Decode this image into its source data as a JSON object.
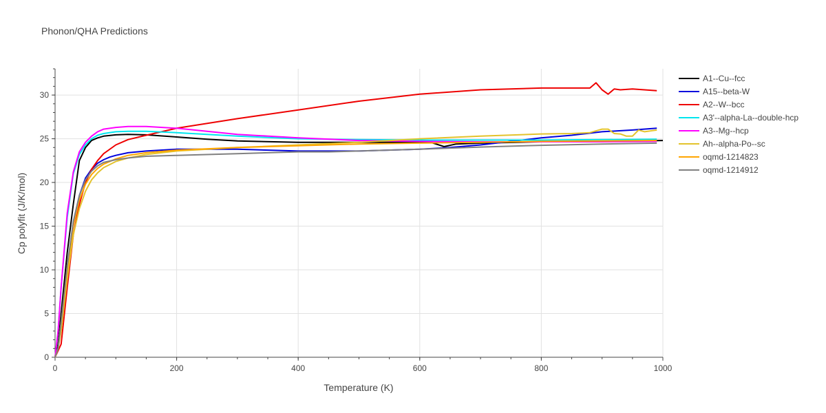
{
  "chart_data": {
    "type": "line",
    "title": "Phonon/QHA Predictions",
    "xlabel": "Temperature (K)",
    "ylabel": "Cp polyfit (J/K/mol)",
    "xlim": [
      0,
      1000
    ],
    "ylim": [
      0,
      33
    ],
    "xticks": [
      "0",
      "200",
      "400",
      "600",
      "800",
      "1000"
    ],
    "yticks": [
      "0",
      "5",
      "10",
      "15",
      "20",
      "25",
      "30"
    ],
    "grid": true,
    "legend_position": "top-right",
    "series": [
      {
        "name": "A1--Cu--fcc",
        "color": "#000000",
        "x": [
          0,
          5,
          10,
          20,
          30,
          40,
          50,
          60,
          70,
          80,
          100,
          120,
          150,
          200,
          250,
          300,
          400,
          500,
          600,
          620,
          640,
          660,
          700,
          800,
          900,
          1000
        ],
        "y": [
          0,
          1.5,
          5,
          12,
          17.5,
          22.5,
          24,
          24.8,
          25.1,
          25.3,
          25.45,
          25.5,
          25.45,
          25.2,
          24.95,
          24.75,
          24.6,
          24.6,
          24.6,
          24.55,
          24.1,
          24.4,
          24.5,
          24.65,
          24.7,
          24.8
        ]
      },
      {
        "name": "A15--beta-W",
        "color": "#0000dd",
        "x": [
          0,
          5,
          10,
          20,
          30,
          40,
          50,
          60,
          70,
          80,
          90,
          100,
          120,
          150,
          200,
          300,
          400,
          500,
          600,
          650,
          700,
          750,
          800,
          850,
          900,
          950,
          990
        ],
        "y": [
          0,
          1,
          3.5,
          10,
          15.5,
          18.5,
          20.5,
          21.5,
          22.2,
          22.6,
          22.9,
          23.1,
          23.4,
          23.6,
          23.8,
          23.8,
          23.6,
          23.6,
          23.8,
          24,
          24.3,
          24.7,
          25.1,
          25.4,
          25.8,
          26,
          26.2
        ]
      },
      {
        "name": "A2--W--bcc",
        "color": "#ee0000",
        "x": [
          0,
          10,
          20,
          30,
          40,
          50,
          60,
          70,
          80,
          100,
          120,
          150,
          200,
          300,
          400,
          500,
          600,
          700,
          800,
          850,
          880,
          890,
          900,
          910,
          920,
          930,
          950,
          990
        ],
        "y": [
          0,
          1.5,
          8,
          14,
          17.5,
          20,
          21.5,
          22.5,
          23.3,
          24.3,
          24.9,
          25.4,
          26.2,
          27.3,
          28.3,
          29.3,
          30.1,
          30.6,
          30.8,
          30.8,
          30.8,
          31.4,
          30.6,
          30.1,
          30.7,
          30.6,
          30.7,
          30.5
        ]
      },
      {
        "name": "A3'--alpha-La--double-hcp",
        "color": "#00e5ee",
        "x": [
          0,
          5,
          10,
          20,
          30,
          40,
          50,
          60,
          70,
          80,
          100,
          120,
          150,
          200,
          300,
          400,
          500,
          600,
          700,
          800,
          900,
          990
        ],
        "y": [
          0,
          3,
          8,
          16,
          21,
          23.2,
          24.3,
          25,
          25.4,
          25.6,
          25.8,
          25.85,
          25.85,
          25.7,
          25.3,
          25,
          24.9,
          24.85,
          24.85,
          24.85,
          24.9,
          24.95
        ]
      },
      {
        "name": "A3--Mg--hcp",
        "color": "#ff00ff",
        "x": [
          0,
          5,
          10,
          20,
          30,
          40,
          50,
          60,
          70,
          80,
          100,
          120,
          150,
          200,
          300,
          400,
          500,
          600,
          700,
          800,
          900,
          990
        ],
        "y": [
          0,
          3,
          8,
          16.5,
          21.2,
          23.5,
          24.6,
          25.3,
          25.8,
          26.1,
          26.3,
          26.4,
          26.4,
          26.2,
          25.5,
          25.1,
          24.8,
          24.7,
          24.65,
          24.65,
          24.65,
          24.7
        ]
      },
      {
        "name": "Ah--alpha-Po--sc",
        "color": "#e3c22b",
        "x": [
          0,
          5,
          10,
          20,
          30,
          40,
          50,
          60,
          70,
          80,
          100,
          120,
          150,
          200,
          300,
          400,
          500,
          600,
          700,
          800,
          850,
          880,
          900,
          910,
          920,
          930,
          940,
          950,
          960,
          970,
          990
        ],
        "y": [
          0,
          1,
          3,
          9,
          14,
          17,
          19,
          20.3,
          21.1,
          21.7,
          22.4,
          22.8,
          23.2,
          23.6,
          24,
          24.3,
          24.6,
          25,
          25.3,
          25.55,
          25.6,
          25.7,
          26.1,
          26.1,
          25.6,
          25.55,
          25.3,
          25.3,
          26,
          25.8,
          26
        ]
      },
      {
        "name": "oqmd-1214823",
        "color": "#ffa500",
        "x": [
          0,
          5,
          10,
          20,
          30,
          40,
          50,
          60,
          70,
          80,
          100,
          120,
          150,
          200,
          300,
          400,
          500,
          600,
          700,
          800,
          900,
          990
        ],
        "y": [
          0,
          1,
          4,
          10,
          15,
          18,
          19.8,
          20.9,
          21.6,
          22.1,
          22.7,
          23.1,
          23.4,
          23.7,
          24,
          24.2,
          24.4,
          24.5,
          24.6,
          24.7,
          24.75,
          24.8
        ]
      },
      {
        "name": "oqmd-1214912",
        "color": "#808080",
        "x": [
          0,
          5,
          10,
          20,
          30,
          40,
          50,
          60,
          70,
          80,
          100,
          120,
          150,
          200,
          300,
          400,
          450,
          500,
          600,
          700,
          800,
          900,
          990
        ],
        "y": [
          0,
          1,
          4,
          10.5,
          15.5,
          18.5,
          20.3,
          21.3,
          21.9,
          22.3,
          22.6,
          22.8,
          23,
          23.1,
          23.3,
          23.5,
          23.5,
          23.6,
          23.8,
          24.05,
          24.25,
          24.4,
          24.5
        ]
      }
    ]
  }
}
